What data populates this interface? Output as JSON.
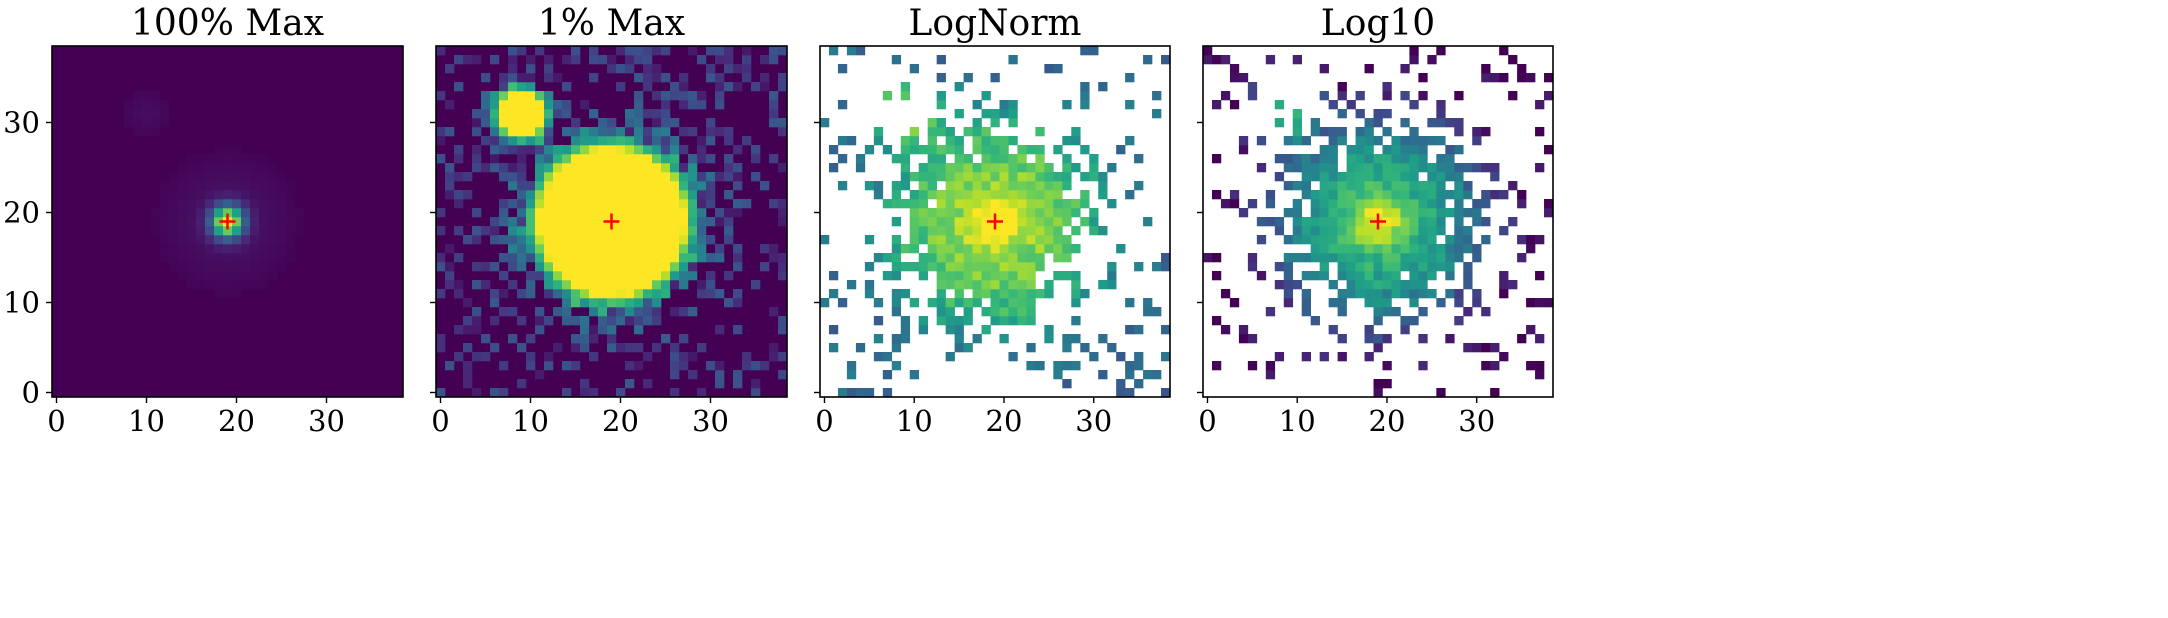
{
  "figure": {
    "crosshair_color": "#ff0000",
    "colormap": "viridis",
    "nan_color": "#ffffff"
  },
  "chart_data": [
    {
      "type": "heatmap",
      "title": "100% Max",
      "norm": "linear",
      "colormap": "viridis",
      "xlim": [
        -0.5,
        38.5
      ],
      "ylim": [
        -0.5,
        38.5
      ],
      "xticks": [
        "0",
        "10",
        "20",
        "30"
      ],
      "yticks": [
        "0",
        "10",
        "20",
        "30"
      ],
      "source_peaks": [
        {
          "x": 19,
          "y": 19,
          "relative_peak": 1.0
        },
        {
          "x": 10,
          "y": 31,
          "relative_peak": 0.05
        }
      ],
      "marker": {
        "x": 19,
        "y": 19,
        "symbol": "+"
      }
    },
    {
      "type": "heatmap",
      "title": "1% Max",
      "norm": "linear, clipped at 1% of max",
      "colormap": "viridis",
      "xlim": [
        -0.5,
        38.5
      ],
      "ylim": [
        -0.5,
        38.5
      ],
      "xticks": [
        "0",
        "10",
        "20",
        "30"
      ],
      "yticks": [],
      "source_peaks": [
        {
          "x": 19,
          "y": 19
        },
        {
          "x": 9,
          "y": 31
        }
      ],
      "marker": {
        "x": 19,
        "y": 19,
        "symbol": "+"
      }
    },
    {
      "type": "heatmap",
      "title": "LogNorm",
      "norm": "log",
      "colormap": "viridis",
      "nonpositive_pixels": "white",
      "xlim": [
        -0.5,
        38.5
      ],
      "ylim": [
        -0.5,
        38.5
      ],
      "xticks": [
        "0",
        "10",
        "20",
        "30"
      ],
      "yticks": [],
      "source_peaks": [
        {
          "x": 19,
          "y": 19
        },
        {
          "x": 9,
          "y": 31
        }
      ],
      "marker": {
        "x": 19,
        "y": 19,
        "symbol": "+"
      }
    },
    {
      "type": "heatmap",
      "title": "Log10",
      "norm": "log10 of data",
      "colormap": "viridis",
      "nonpositive_pixels": "white",
      "xlim": [
        -0.5,
        38.5
      ],
      "ylim": [
        -0.5,
        38.5
      ],
      "xticks": [
        "0",
        "10",
        "20",
        "30"
      ],
      "yticks": [],
      "source_peaks": [
        {
          "x": 19,
          "y": 19
        },
        {
          "x": 10,
          "y": 31
        }
      ],
      "marker": {
        "x": 19,
        "y": 19,
        "symbol": "+"
      }
    }
  ]
}
